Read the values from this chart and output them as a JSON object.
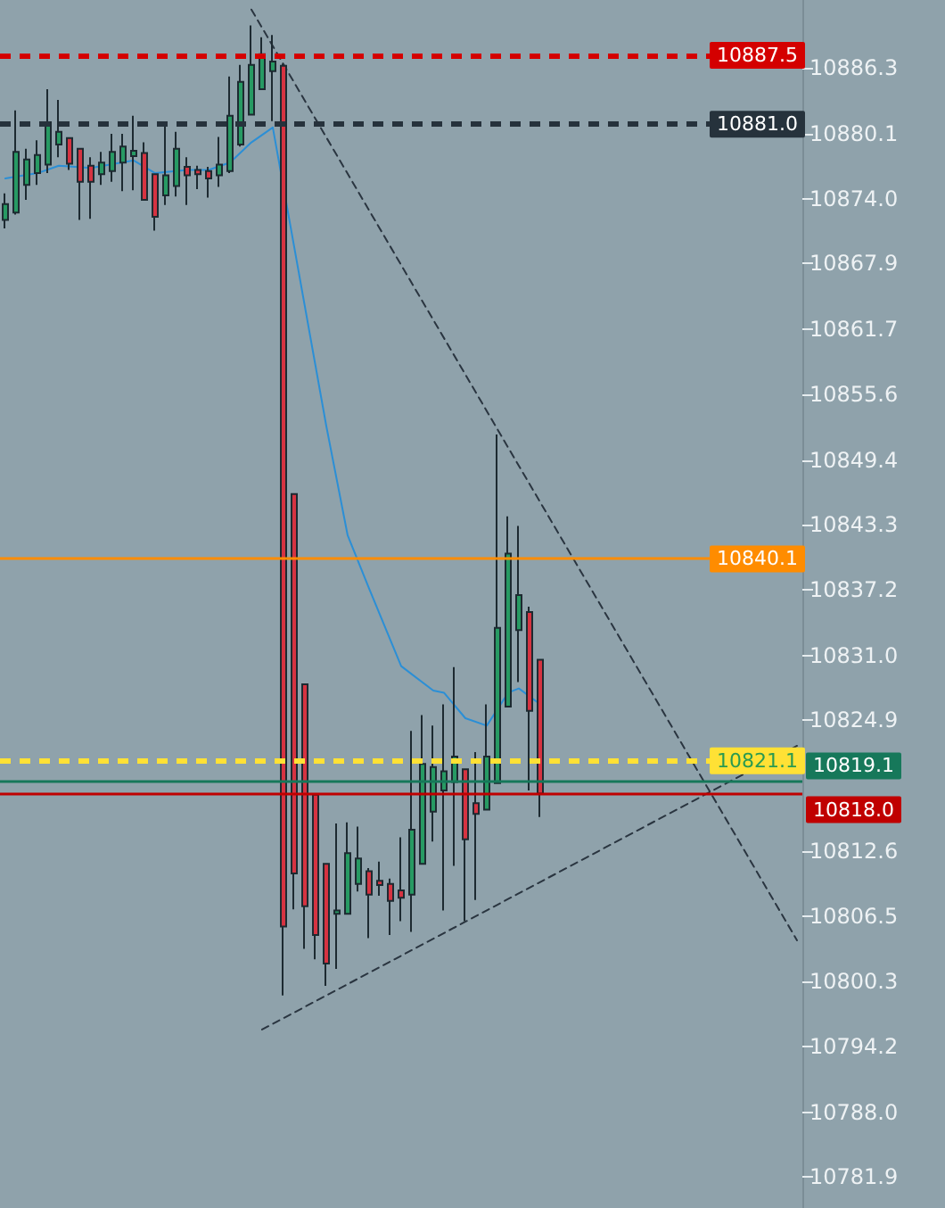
{
  "chart_data": {
    "type": "candlestick",
    "categories": [
      null,
      null,
      null,
      null,
      null,
      null,
      null,
      null,
      null,
      null,
      null,
      null,
      null,
      null,
      null,
      null,
      null,
      null,
      null,
      null,
      null,
      null,
      null,
      null,
      null,
      null,
      null,
      null,
      null,
      null,
      null,
      null,
      null,
      null,
      null,
      null,
      null,
      null,
      null,
      null,
      null,
      null,
      null,
      null,
      null,
      null,
      null,
      null,
      null,
      null,
      null,
      null,
      null,
      null,
      null,
      null,
      null,
      null,
      null,
      null,
      null,
      null,
      null,
      null,
      null,
      null,
      null,
      null,
      null,
      null,
      null,
      null,
      null,
      null,
      null
    ],
    "ohlc": [
      [
        10872.0,
        10874.5,
        10871.2,
        10873.5
      ],
      [
        10872.7,
        10882.3,
        10872.5,
        10878.4
      ],
      [
        10875.3,
        10878.7,
        10873.9,
        10877.7
      ],
      [
        10876.4,
        10879.5,
        10875.3,
        10878.1
      ],
      [
        10877.2,
        10884.3,
        10876.4,
        10881.2
      ],
      [
        10879.1,
        10883.3,
        10877.9,
        10880.3
      ],
      [
        10879.7,
        10879.7,
        10876.7,
        10877.3
      ],
      [
        10878.7,
        10878.7,
        10872.0,
        10875.6
      ],
      [
        10877.1,
        10877.9,
        10872.1,
        10875.6
      ],
      [
        10876.3,
        10878.4,
        10875.3,
        10877.4
      ],
      [
        10876.6,
        10880.1,
        10875.6,
        10878.4
      ],
      [
        10877.4,
        10880.1,
        10874.7,
        10878.9
      ],
      [
        10878.0,
        10881.8,
        10874.8,
        10878.5
      ],
      [
        10878.3,
        10879.3,
        10873.9,
        10873.9
      ],
      [
        10876.3,
        10876.3,
        10871.0,
        10872.3
      ],
      [
        10874.3,
        10880.8,
        10873.4,
        10876.2
      ],
      [
        10875.2,
        10880.3,
        10874.2,
        10878.7
      ],
      [
        10877.0,
        10877.9,
        10873.4,
        10876.2
      ],
      [
        10876.7,
        10877.1,
        10874.9,
        10876.3
      ],
      [
        10876.6,
        10877.0,
        10874.1,
        10875.9
      ],
      [
        10876.2,
        10879.8,
        10875.1,
        10877.2
      ],
      [
        10876.6,
        10885.5,
        10876.4,
        10881.8
      ],
      [
        10879.1,
        10886.6,
        10878.9,
        10885.0
      ],
      [
        10881.9,
        10890.3,
        10881.9,
        10886.6
      ],
      [
        10884.3,
        10889.2,
        10884.3,
        10887.6
      ],
      [
        10886.0,
        10889.4,
        10881.3,
        10886.9
      ],
      [
        10886.5,
        10886.7,
        10799.0,
        10805.5
      ],
      [
        10846.2,
        10846.2,
        10807.1,
        10810.5
      ],
      [
        10828.3,
        10828.3,
        10803.4,
        10807.4
      ],
      [
        10817.9,
        10817.9,
        10802.4,
        10804.7
      ],
      [
        10811.4,
        10811.4,
        10799.9,
        10802.0
      ],
      [
        10806.7,
        10815.2,
        10801.5,
        10807.0
      ],
      [
        10806.7,
        10815.3,
        10806.7,
        10812.4
      ],
      [
        10809.5,
        10814.9,
        10808.8,
        10811.9
      ],
      [
        10810.7,
        10811.0,
        10804.4,
        10808.5
      ],
      [
        10809.8,
        10811.6,
        10808.4,
        10809.4
      ],
      [
        10809.5,
        10810.0,
        10804.7,
        10807.9
      ],
      [
        10808.9,
        10813.9,
        10806.0,
        10808.2
      ],
      [
        10808.5,
        10823.9,
        10805.0,
        10814.6
      ],
      [
        10811.4,
        10825.4,
        10811.4,
        10820.8
      ],
      [
        10816.3,
        10824.4,
        10813.5,
        10820.5
      ],
      [
        10818.3,
        10826.4,
        10807.0,
        10820.1
      ],
      [
        10819.1,
        10829.9,
        10811.2,
        10821.5
      ],
      [
        10820.3,
        10820.3,
        10806.0,
        10813.7
      ],
      [
        10817.1,
        10821.9,
        10808.0,
        10816.1
      ],
      [
        10816.5,
        10826.4,
        10816.5,
        10821.5
      ],
      [
        10819.0,
        10851.8,
        10819.0,
        10833.6
      ],
      [
        10826.2,
        10844.1,
        10826.2,
        10840.6
      ],
      [
        10833.4,
        10843.2,
        10828.5,
        10836.7
      ],
      [
        10835.1,
        10835.6,
        10818.3,
        10825.8
      ],
      [
        10830.6,
        10830.6,
        10815.8,
        10818.0
      ],
      null,
      null,
      null,
      null,
      null,
      null,
      null,
      null,
      null,
      null,
      null,
      null,
      null,
      null,
      null,
      null,
      null,
      null,
      null,
      null,
      null,
      null,
      null,
      null
    ],
    "colors": [
      "#279a63",
      "#279a63",
      "#279a63",
      "#279a63",
      "#279a63",
      "#279a63",
      "#d63341",
      "#d63341",
      "#d63341",
      "#279a63",
      "#279a63",
      "#279a63",
      "#279a63",
      "#d63341",
      "#d63341",
      "#279a63",
      "#279a63",
      "#d63341",
      "#d63341",
      "#d63341",
      "#279a63",
      "#279a63",
      "#279a63",
      "#279a63",
      "#279a63",
      "#279a63",
      "#d63341",
      "#d63341",
      "#d63341",
      "#d63341",
      "#d63341",
      "#279a63",
      "#279a63",
      "#279a63",
      "#d63341",
      "#d63341",
      "#d63341",
      "#d63341",
      "#279a63",
      "#279a63",
      "#279a63",
      "#279a63",
      "#279a63",
      "#d63341",
      "#d63341",
      "#279a63",
      "#279a63",
      "#279a63",
      "#279a63",
      "#d63341",
      "#d63341",
      null,
      null,
      null,
      null,
      null,
      null,
      null,
      null,
      null,
      null,
      null,
      null,
      null,
      null,
      null,
      null,
      null,
      null,
      null,
      null,
      null,
      null,
      null,
      null
    ],
    "series": [
      {
        "type": "line",
        "color": "#2b8fd6",
        "line_style": "solid",
        "values": [
          10875.9,
          null,
          null,
          10876.4,
          null,
          10877.1,
          null,
          null,
          10876.9,
          null,
          null,
          null,
          10877.6,
          null,
          10876.4,
          null,
          null,
          10876.7,
          null,
          10876.7,
          null,
          10877.4,
          null,
          10879.3,
          null,
          10880.7,
          null,
          null,
          null,
          null,
          10852.6,
          null,
          10842.3,
          null,
          10837.3,
          null,
          null,
          10830.0,
          null,
          null,
          10827.7,
          10827.5,
          null,
          10825.1,
          null,
          10824.4,
          null,
          10827.5,
          10827.9,
          null,
          10826.4,
          null,
          null,
          null,
          null,
          null,
          null,
          null,
          null,
          null,
          null,
          null,
          null,
          null,
          null,
          null,
          null,
          null,
          null,
          null,
          null,
          null,
          null,
          null,
          null
        ]
      },
      {
        "type": "line",
        "color": "#2a3540",
        "line_style": "dashed",
        "values": [
          null,
          null,
          null,
          null,
          null,
          null,
          null,
          null,
          null,
          null,
          null,
          null,
          null,
          null,
          null,
          null,
          null,
          null,
          null,
          null,
          null,
          null,
          null,
          10891.8,
          null,
          null,
          null,
          null,
          null,
          null,
          null,
          null,
          null,
          null,
          null,
          null,
          null,
          null,
          null,
          null,
          null,
          null,
          null,
          null,
          null,
          null,
          null,
          null,
          null,
          null,
          null,
          null,
          null,
          null,
          null,
          null,
          null,
          null,
          null,
          null,
          null,
          null,
          null,
          null,
          null,
          null,
          null,
          null,
          null,
          null,
          null,
          null,
          null,
          null,
          10804.2
        ]
      },
      {
        "type": "line",
        "color": "#2a3540",
        "line_style": "dashed",
        "values": [
          null,
          null,
          null,
          null,
          null,
          null,
          null,
          null,
          null,
          null,
          null,
          null,
          null,
          null,
          null,
          null,
          null,
          null,
          null,
          null,
          null,
          null,
          null,
          null,
          10795.8,
          null,
          null,
          null,
          null,
          null,
          null,
          null,
          null,
          null,
          null,
          null,
          null,
          null,
          null,
          null,
          null,
          null,
          null,
          null,
          null,
          null,
          null,
          null,
          null,
          null,
          null,
          null,
          null,
          null,
          null,
          null,
          null,
          null,
          null,
          null,
          null,
          null,
          null,
          null,
          null,
          null,
          null,
          null,
          null,
          null,
          null,
          null,
          null,
          null,
          10822.5
        ]
      }
    ],
    "ylim": [
      10779.0,
      10892.7
    ],
    "yticks": [
      10886.3,
      10880.1,
      {
        "value": 10874.0,
        "label": "10874.0"
      },
      10867.9,
      10861.7,
      10855.6,
      10849.4,
      10843.3,
      10837.2,
      {
        "value": 10831.0,
        "label": "10831.0"
      },
      10824.9,
      10812.6,
      10806.5,
      10800.3,
      10794.2,
      {
        "value": 10788.0,
        "label": "10788.0"
      },
      10781.9
    ],
    "ref_lines": [
      {
        "axis": "y",
        "value": 10887.5,
        "label": "10887.5",
        "color": "#d40000",
        "line_style": "dashed"
      },
      {
        "axis": "y",
        "value": 10881.0,
        "label": "10881.0",
        "color": "#26323c",
        "line_style": "dashed"
      },
      {
        "axis": "y",
        "value": 10840.1,
        "label": "10840.1",
        "color": "#ff8c00",
        "line_style": "solid"
      },
      {
        "axis": "y",
        "value": 10821.1,
        "label": "10821.1",
        "color": "#ffe135",
        "line_style": "dashed"
      },
      {
        "axis": "y",
        "value": 10819.1,
        "label": "10819.1",
        "color": "#16785a",
        "line_style": "solid"
      },
      {
        "axis": "y",
        "value": 10818.0,
        "label": "10818.0",
        "color": "#c00000",
        "line_style": "solid"
      }
    ],
    "tick_labels": "y",
    "grid": false
  }
}
